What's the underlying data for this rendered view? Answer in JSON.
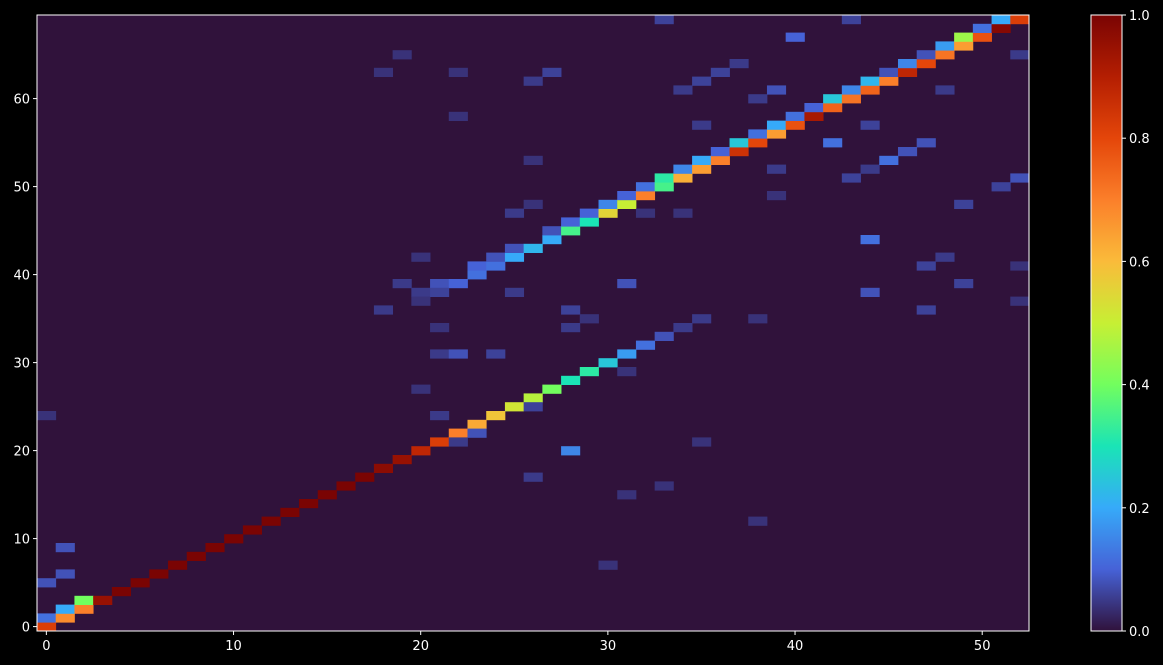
{
  "chart_data": {
    "type": "heatmap",
    "title": "",
    "xlabel": "",
    "ylabel": "",
    "x_range": [
      -0.5,
      52.5
    ],
    "y_range": [
      -0.5,
      69.5
    ],
    "x_ticks": [
      "0",
      "10",
      "20",
      "30",
      "40",
      "50"
    ],
    "y_ticks": [
      "0",
      "10",
      "20",
      "30",
      "40",
      "50",
      "60"
    ],
    "colorbar": {
      "min": 0.0,
      "max": 1.0,
      "ticks": [
        "0.0",
        "0.2",
        "0.4",
        "0.6",
        "0.8",
        "1.0"
      ],
      "colormap": "turbo"
    },
    "background_value": 0.0,
    "cells": [
      [
        0,
        0,
        0.82
      ],
      [
        0,
        1,
        0.12
      ],
      [
        1,
        1,
        0.68
      ],
      [
        1,
        2,
        0.2
      ],
      [
        2,
        2,
        0.7
      ],
      [
        2,
        3,
        0.4
      ],
      [
        3,
        3,
        0.95
      ],
      [
        4,
        4,
        1.0
      ],
      [
        5,
        5,
        1.0
      ],
      [
        6,
        6,
        1.0
      ],
      [
        7,
        7,
        1.0
      ],
      [
        8,
        8,
        1.0
      ],
      [
        9,
        9,
        1.0
      ],
      [
        10,
        10,
        1.0
      ],
      [
        11,
        11,
        1.0
      ],
      [
        12,
        12,
        1.0
      ],
      [
        13,
        13,
        1.0
      ],
      [
        14,
        14,
        1.0
      ],
      [
        15,
        15,
        1.0
      ],
      [
        16,
        16,
        1.0
      ],
      [
        17,
        17,
        1.0
      ],
      [
        18,
        18,
        0.97
      ],
      [
        19,
        19,
        0.95
      ],
      [
        20,
        20,
        0.88
      ],
      [
        21,
        21,
        0.82
      ],
      [
        22,
        22,
        0.7
      ],
      [
        23,
        23,
        0.63
      ],
      [
        24,
        24,
        0.58
      ],
      [
        25,
        25,
        0.52
      ],
      [
        26,
        26,
        0.48
      ],
      [
        27,
        27,
        0.4
      ],
      [
        28,
        28,
        0.3
      ],
      [
        29,
        29,
        0.32
      ],
      [
        30,
        30,
        0.25
      ],
      [
        31,
        31,
        0.18
      ],
      [
        32,
        32,
        0.12
      ],
      [
        33,
        33,
        0.08
      ],
      [
        34,
        34,
        0.05
      ],
      [
        19,
        39,
        0.05
      ],
      [
        20,
        38,
        0.05
      ],
      [
        21,
        39,
        0.08
      ],
      [
        22,
        39,
        0.1
      ],
      [
        23,
        40,
        0.12
      ],
      [
        23,
        41,
        0.1
      ],
      [
        24,
        41,
        0.12
      ],
      [
        24,
        42,
        0.08
      ],
      [
        25,
        42,
        0.2
      ],
      [
        25,
        43,
        0.08
      ],
      [
        26,
        43,
        0.22
      ],
      [
        27,
        44,
        0.2
      ],
      [
        27,
        45,
        0.08
      ],
      [
        28,
        45,
        0.35
      ],
      [
        28,
        46,
        0.1
      ],
      [
        29,
        46,
        0.3
      ],
      [
        29,
        47,
        0.1
      ],
      [
        30,
        47,
        0.55
      ],
      [
        30,
        48,
        0.15
      ],
      [
        31,
        48,
        0.5
      ],
      [
        31,
        49,
        0.1
      ],
      [
        32,
        49,
        0.7
      ],
      [
        32,
        50,
        0.12
      ],
      [
        33,
        50,
        0.35
      ],
      [
        33,
        51,
        0.32
      ],
      [
        34,
        51,
        0.62
      ],
      [
        34,
        52,
        0.15
      ],
      [
        35,
        52,
        0.65
      ],
      [
        35,
        53,
        0.2
      ],
      [
        36,
        53,
        0.7
      ],
      [
        36,
        54,
        0.1
      ],
      [
        37,
        54,
        0.85
      ],
      [
        37,
        55,
        0.25
      ],
      [
        38,
        55,
        0.8
      ],
      [
        38,
        56,
        0.12
      ],
      [
        39,
        56,
        0.65
      ],
      [
        39,
        57,
        0.2
      ],
      [
        40,
        57,
        0.78
      ],
      [
        40,
        58,
        0.12
      ],
      [
        41,
        58,
        0.92
      ],
      [
        41,
        59,
        0.1
      ],
      [
        42,
        59,
        0.75
      ],
      [
        42,
        60,
        0.25
      ],
      [
        43,
        60,
        0.72
      ],
      [
        43,
        61,
        0.15
      ],
      [
        44,
        61,
        0.75
      ],
      [
        44,
        62,
        0.22
      ],
      [
        45,
        62,
        0.7
      ],
      [
        45,
        63,
        0.08
      ],
      [
        46,
        63,
        0.88
      ],
      [
        46,
        64,
        0.15
      ],
      [
        47,
        64,
        0.8
      ],
      [
        47,
        65,
        0.08
      ],
      [
        48,
        65,
        0.72
      ],
      [
        48,
        66,
        0.18
      ],
      [
        49,
        66,
        0.65
      ],
      [
        49,
        67,
        0.45
      ],
      [
        50,
        67,
        0.78
      ],
      [
        50,
        68,
        0.12
      ],
      [
        51,
        68,
        0.98
      ],
      [
        51,
        69,
        0.2
      ],
      [
        52,
        69,
        0.82
      ],
      [
        0,
        5,
        0.08
      ],
      [
        1,
        6,
        0.08
      ],
      [
        1,
        9,
        0.08
      ],
      [
        0,
        24,
        0.04
      ],
      [
        28,
        20,
        0.15
      ],
      [
        26,
        17,
        0.05
      ],
      [
        21,
        24,
        0.05
      ],
      [
        20,
        27,
        0.04
      ],
      [
        21,
        31,
        0.05
      ],
      [
        22,
        31,
        0.08
      ],
      [
        24,
        31,
        0.06
      ],
      [
        21,
        34,
        0.04
      ],
      [
        28,
        34,
        0.05
      ],
      [
        28,
        36,
        0.06
      ],
      [
        18,
        36,
        0.05
      ],
      [
        20,
        37,
        0.04
      ],
      [
        21,
        38,
        0.06
      ],
      [
        25,
        38,
        0.05
      ],
      [
        31,
        39,
        0.08
      ],
      [
        35,
        35,
        0.05
      ],
      [
        29,
        35,
        0.04
      ],
      [
        34,
        47,
        0.04
      ],
      [
        26,
        48,
        0.04
      ],
      [
        25,
        47,
        0.05
      ],
      [
        32,
        47,
        0.04
      ],
      [
        39,
        49,
        0.04
      ],
      [
        39,
        52,
        0.05
      ],
      [
        42,
        55,
        0.12
      ],
      [
        43,
        51,
        0.06
      ],
      [
        44,
        52,
        0.05
      ],
      [
        45,
        53,
        0.12
      ],
      [
        46,
        54,
        0.08
      ],
      [
        47,
        55,
        0.08
      ],
      [
        44,
        57,
        0.06
      ],
      [
        35,
        57,
        0.05
      ],
      [
        38,
        60,
        0.05
      ],
      [
        39,
        61,
        0.08
      ],
      [
        34,
        61,
        0.05
      ],
      [
        35,
        62,
        0.06
      ],
      [
        36,
        63,
        0.06
      ],
      [
        37,
        64,
        0.05
      ],
      [
        40,
        67,
        0.1
      ],
      [
        43,
        69,
        0.06
      ],
      [
        33,
        69,
        0.06
      ],
      [
        48,
        61,
        0.05
      ],
      [
        52,
        65,
        0.05
      ],
      [
        22,
        63,
        0.04
      ],
      [
        18,
        63,
        0.04
      ],
      [
        26,
        62,
        0.05
      ],
      [
        27,
        63,
        0.06
      ],
      [
        26,
        53,
        0.04
      ],
      [
        22,
        58,
        0.04
      ],
      [
        19,
        65,
        0.04
      ],
      [
        44,
        44,
        0.12
      ],
      [
        44,
        38,
        0.08
      ],
      [
        47,
        41,
        0.06
      ],
      [
        48,
        42,
        0.05
      ],
      [
        49,
        39,
        0.06
      ],
      [
        49,
        48,
        0.06
      ],
      [
        51,
        50,
        0.06
      ],
      [
        52,
        51,
        0.08
      ],
      [
        47,
        36,
        0.06
      ],
      [
        52,
        37,
        0.04
      ],
      [
        52,
        41,
        0.04
      ],
      [
        20,
        42,
        0.04
      ],
      [
        30,
        7,
        0.04
      ],
      [
        31,
        15,
        0.04
      ],
      [
        33,
        16,
        0.04
      ],
      [
        38,
        12,
        0.04
      ],
      [
        35,
        21,
        0.04
      ],
      [
        38,
        35,
        0.04
      ],
      [
        31,
        29,
        0.04
      ],
      [
        23,
        22,
        0.08
      ],
      [
        22,
        21,
        0.05
      ],
      [
        26,
        25,
        0.06
      ]
    ]
  }
}
